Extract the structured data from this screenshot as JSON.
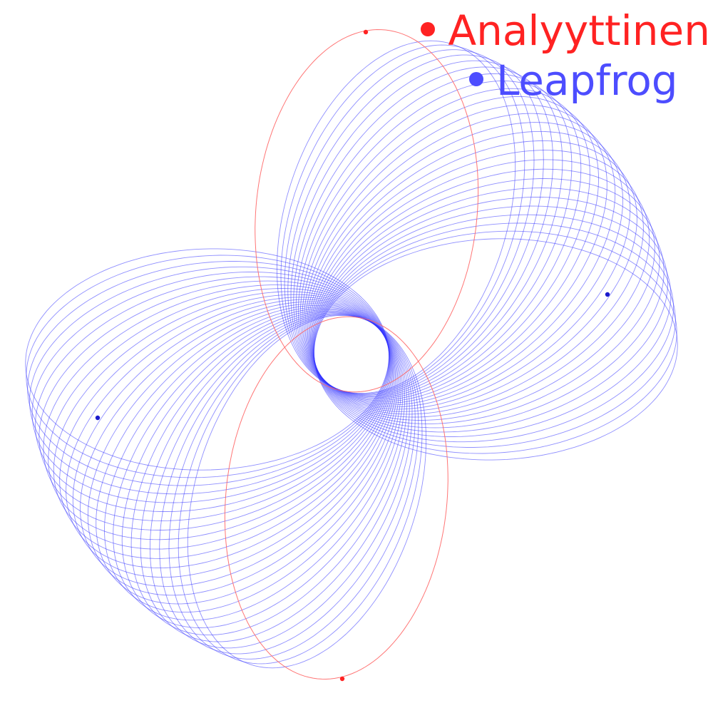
{
  "legend": {
    "analytic": {
      "label": "Analyyttinen",
      "color": "#ff2222",
      "icon": "bullet-dot"
    },
    "leapfrog": {
      "label": "Leapfrog",
      "color": "#4d4dff",
      "icon": "bullet-dot"
    }
  },
  "colors": {
    "background": "#ffffff",
    "analytic_orbit": "#ff6666",
    "leapfrog_orbit": "#3333ff",
    "analytic_marker": "#ff2222",
    "leapfrog_marker": "#1a1acc"
  }
}
